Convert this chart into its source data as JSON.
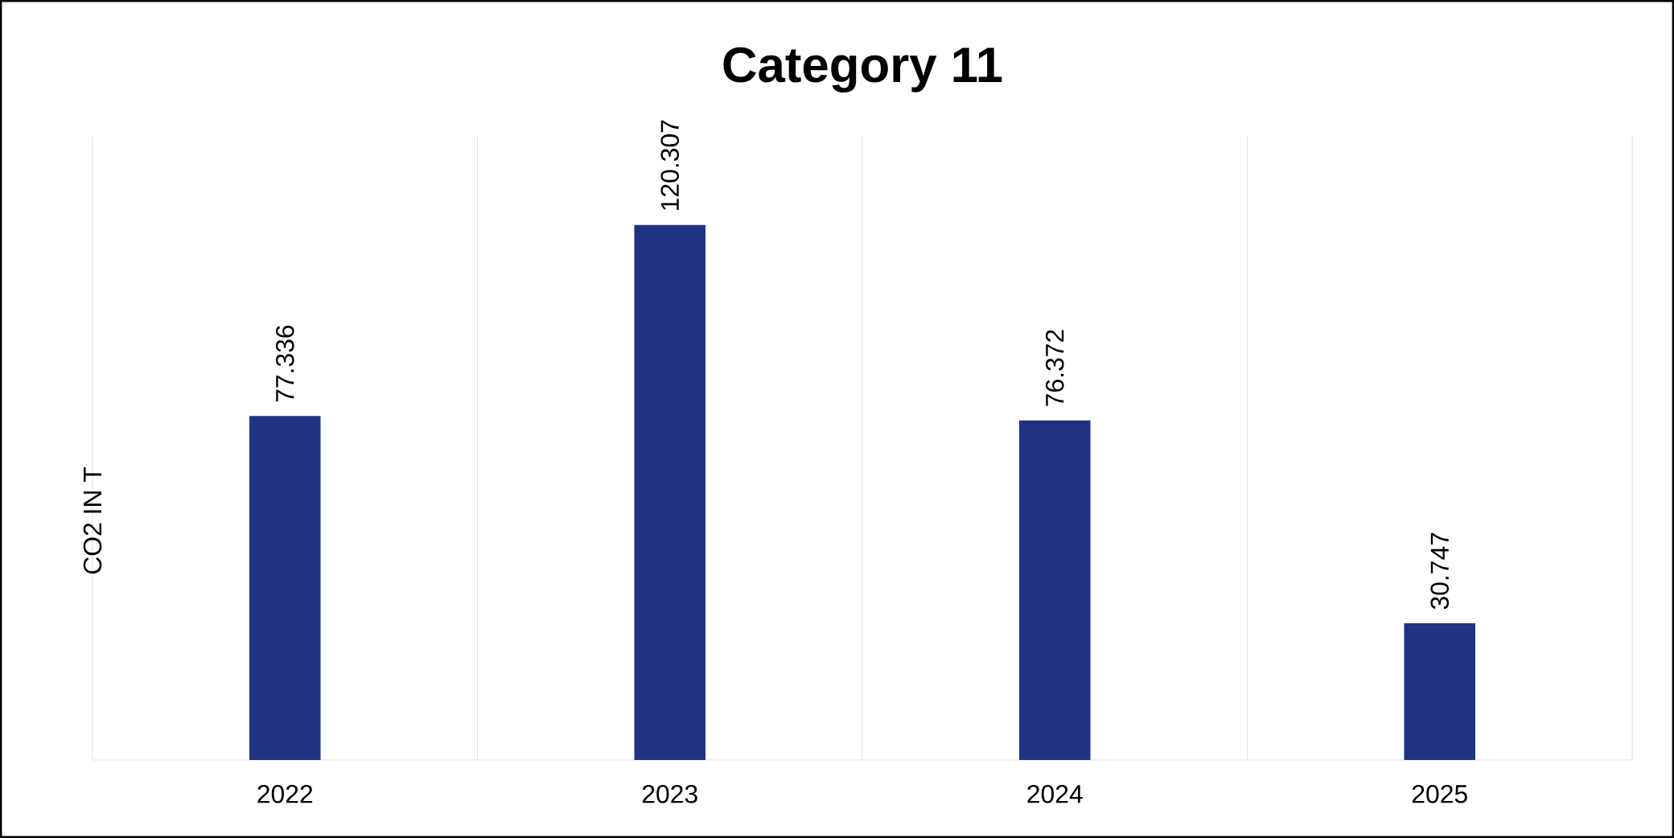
{
  "chart_data": {
    "type": "bar",
    "title": "Category 11",
    "ylabel": "CO2 IN T",
    "categories": [
      "2022",
      "2023",
      "2024",
      "2025"
    ],
    "values": [
      77.336,
      120.307,
      76.372,
      30.747
    ],
    "color": "#1f3382",
    "data_labels": true,
    "grid": "x"
  }
}
